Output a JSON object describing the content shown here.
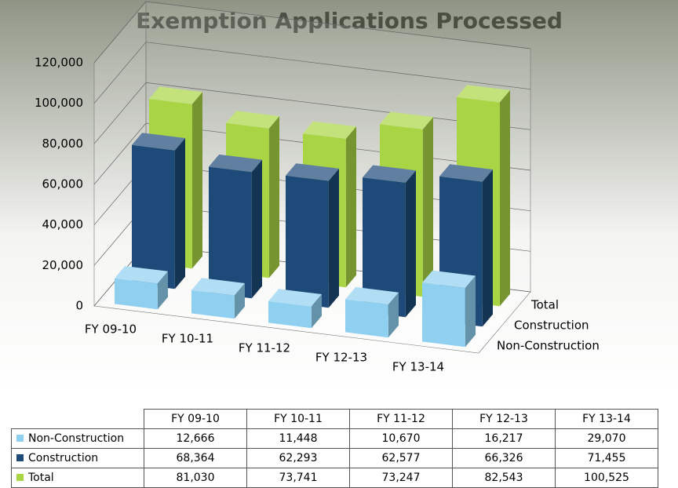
{
  "chart_data": {
    "type": "bar3d",
    "title": "Exemption Applications Processed",
    "categories": [
      "FY 09-10",
      "FY 10-11",
      "FY 11-12",
      "FY 12-13",
      "FY 13-14"
    ],
    "series": [
      {
        "name": "Non-Construction",
        "color": "#8fd0f0",
        "values": [
          12666,
          11448,
          10670,
          16217,
          29070
        ],
        "value_labels": [
          "12,666",
          "11,448",
          "10,670",
          "16,217",
          "29,070"
        ]
      },
      {
        "name": "Construction",
        "color": "#1d4a78",
        "values": [
          68364,
          62293,
          62577,
          66326,
          71455
        ],
        "value_labels": [
          "68,364",
          "62,293",
          "62,577",
          "66,326",
          "71,455"
        ]
      },
      {
        "name": "Total",
        "color": "#a9d544",
        "values": [
          81030,
          73741,
          73247,
          82543,
          100525
        ],
        "value_labels": [
          "81,030",
          "73,741",
          "73,247",
          "82,543",
          "100,525"
        ]
      }
    ],
    "ylim": [
      0,
      120000
    ],
    "yticks": [
      0,
      {
        "value": 20000,
        "label": "20,000"
      },
      {
        "value": 40000,
        "label": "40,000"
      },
      {
        "value": 60000,
        "label": "60,000"
      },
      {
        "value": 80000,
        "label": "80,000"
      },
      {
        "value": 100000,
        "label": "100,000"
      },
      {
        "value": 120000,
        "label": "120,000"
      }
    ],
    "grid": true
  }
}
